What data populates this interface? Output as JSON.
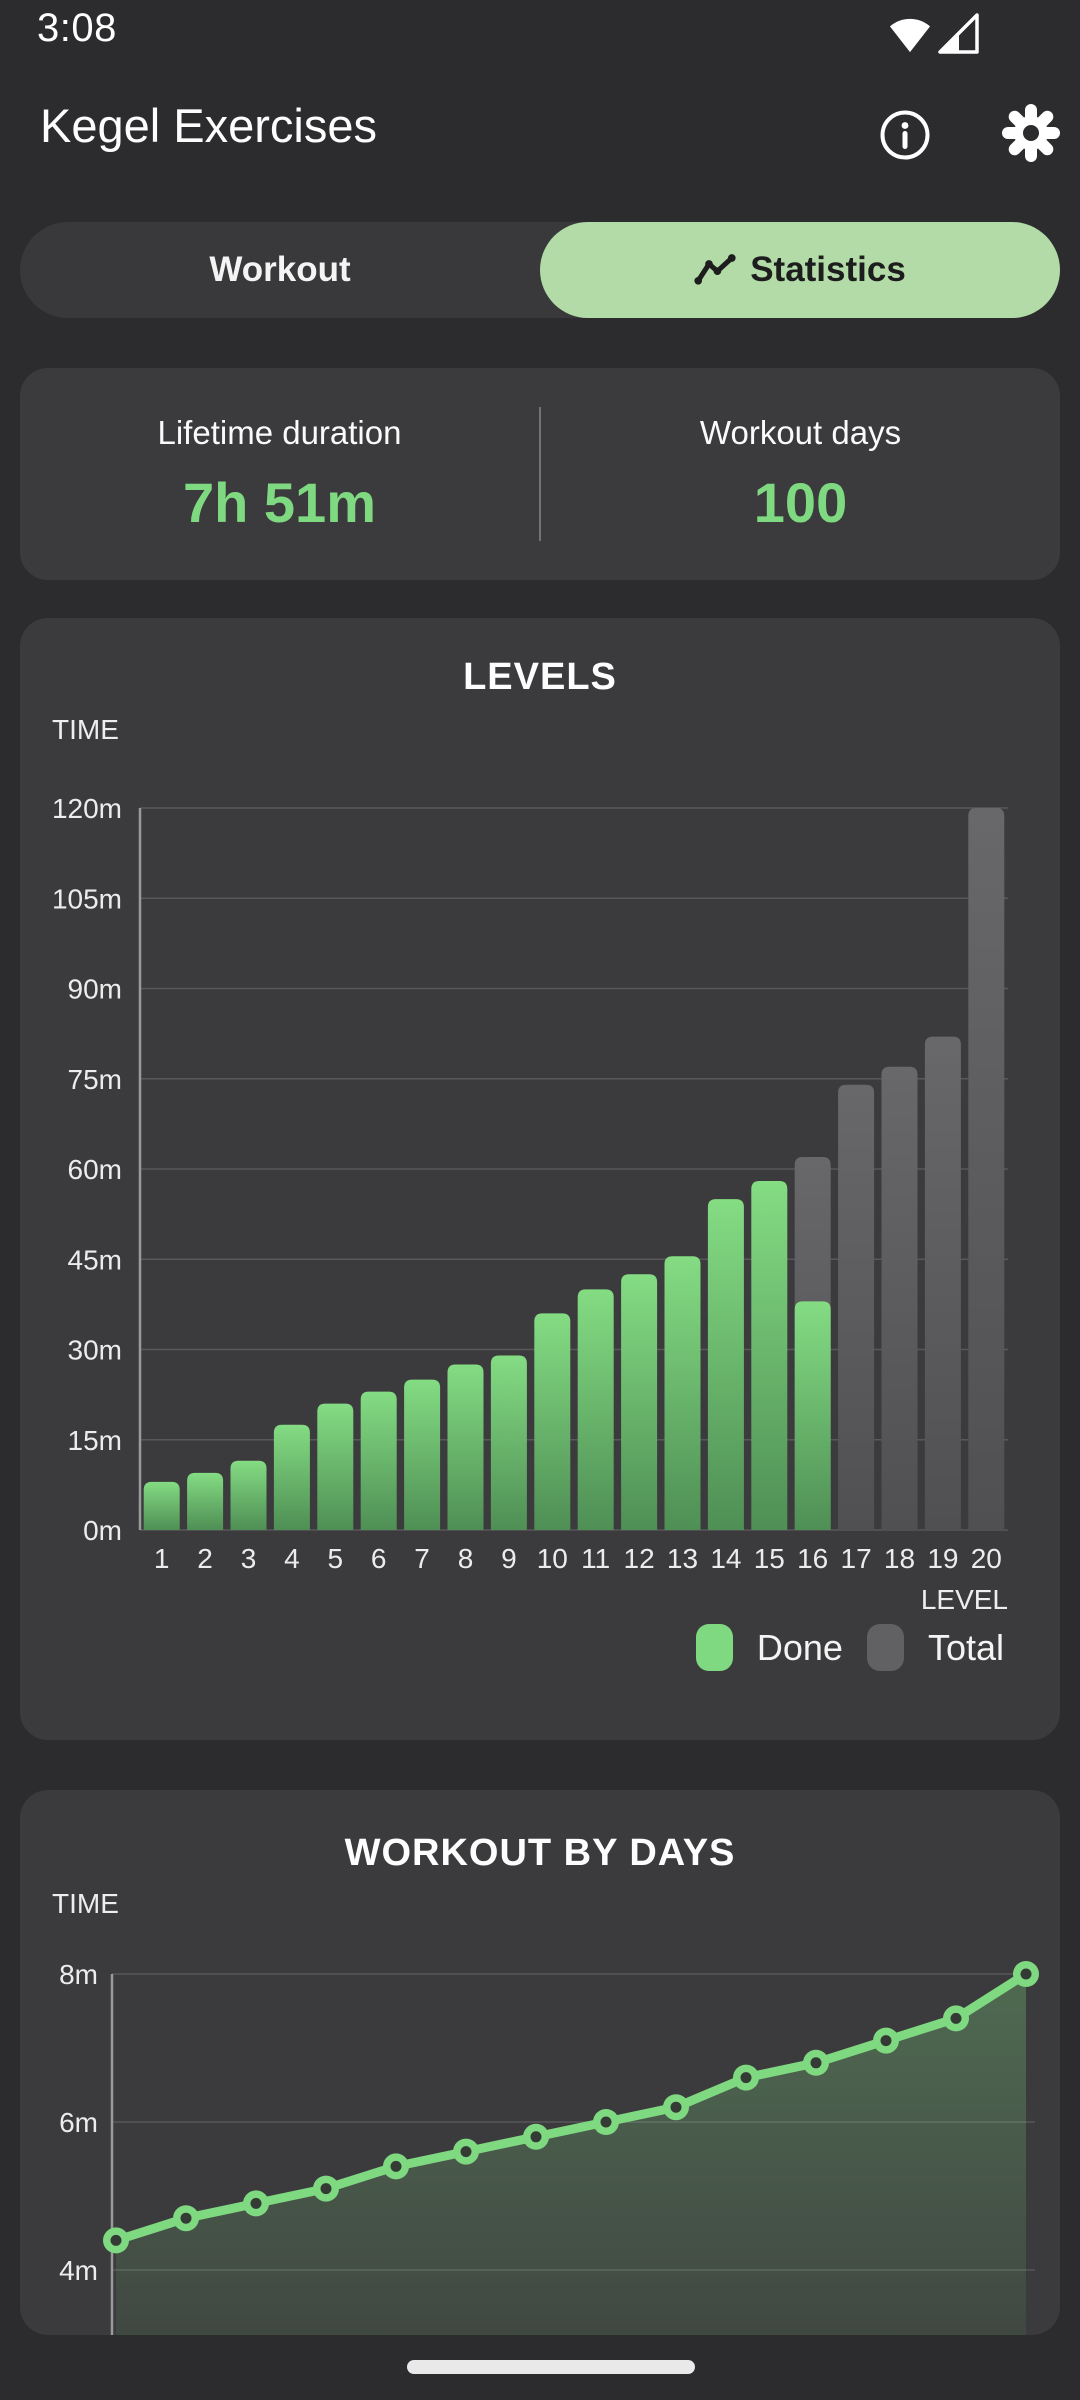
{
  "status_bar": {
    "time": "3:08",
    "icons": [
      "wifi-icon",
      "cellular-signal-icon"
    ]
  },
  "header": {
    "title": "Kegel Exercises",
    "actions": [
      "info",
      "settings"
    ]
  },
  "tabs": {
    "workout": {
      "label": "Workout",
      "selected": false
    },
    "statistics": {
      "label": "Statistics",
      "selected": true
    }
  },
  "summary": {
    "lifetime": {
      "label": "Lifetime duration",
      "value": "7h 51m"
    },
    "days": {
      "label": "Workout days",
      "value": "100"
    }
  },
  "colors": {
    "accent_green": "#7fd981",
    "tab_selected_bg": "#b2dba7",
    "bar_done_top": "#84dc83",
    "bar_done_bottom": "#4f8f55",
    "bar_total": "#616163",
    "card_bg": "#3b3b3d",
    "page_bg": "#2c2c2e",
    "grid_line": "#58585a"
  },
  "chart_data": [
    {
      "type": "bar",
      "title": "LEVELS",
      "ylabel": "TIME",
      "xlabel": "LEVEL",
      "unit": "m",
      "categories": [
        "1",
        "2",
        "3",
        "4",
        "5",
        "6",
        "7",
        "8",
        "9",
        "10",
        "11",
        "12",
        "13",
        "14",
        "15",
        "16",
        "17",
        "18",
        "19",
        "20"
      ],
      "series": [
        {
          "name": "Done",
          "color": "#7fd981",
          "values": [
            8,
            9.5,
            11.5,
            17.5,
            21,
            23,
            25,
            27.5,
            29,
            36,
            40,
            42.5,
            45.5,
            55,
            58,
            38,
            0,
            0,
            0,
            0
          ]
        },
        {
          "name": "Total",
          "color": "#616163",
          "values": [
            8,
            9.5,
            11.5,
            17.5,
            21,
            23,
            25,
            27.5,
            29,
            36,
            40,
            42.5,
            45.5,
            55,
            58,
            62,
            74,
            77,
            82,
            120
          ]
        }
      ],
      "ylim": [
        0,
        120
      ],
      "ytick_step": 15,
      "grid": true,
      "legend_position": "bottom-right"
    },
    {
      "type": "area",
      "title": "WORKOUT BY DAYS",
      "ylabel": "TIME",
      "unit": "m",
      "values": [
        4.4,
        4.7,
        4.9,
        5.1,
        5.4,
        5.6,
        5.8,
        6.0,
        6.2,
        6.6,
        6.8,
        7.1,
        7.4,
        8.0
      ],
      "yticks": [
        8,
        6,
        4
      ],
      "line_color": "#7fd981",
      "marker": "ring",
      "grid": true
    }
  ]
}
